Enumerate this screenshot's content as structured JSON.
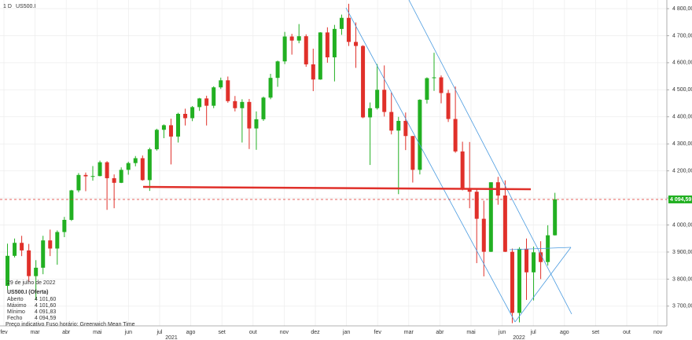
{
  "header": {
    "interval": "1 D",
    "symbol": "US500.I"
  },
  "chart_data": {
    "type": "candlestick",
    "up_color": "#22b022",
    "down_color": "#e0302a",
    "months": [
      "fev",
      "mar",
      "abr",
      "mai",
      "jun",
      "jul",
      "ago",
      "set",
      "out",
      "nov",
      "dez",
      "jan",
      "fev",
      "mar",
      "abr",
      "mai",
      "jun",
      "jul",
      "ago",
      "set",
      "out",
      "nov"
    ],
    "years": [
      "2021",
      "2022"
    ],
    "ylim": [
      3627,
      4832
    ],
    "yticks": [
      {
        "value": 3700,
        "label": "3 700,00"
      },
      {
        "value": 3800,
        "label": "3 800,00"
      },
      {
        "value": 3900,
        "label": "3 900,00"
      },
      {
        "value": 4000,
        "label": "4 000,00"
      },
      {
        "value": 4100,
        "label": "4 100,00"
      },
      {
        "value": 4200,
        "label": "4 200,00"
      },
      {
        "value": 4300,
        "label": "4 300,00"
      },
      {
        "value": 4400,
        "label": "4 400,00"
      },
      {
        "value": 4500,
        "label": "4 500,00"
      },
      {
        "value": 4600,
        "label": "4 600,00"
      },
      {
        "value": 4700,
        "label": "4 700,00"
      },
      {
        "value": 4800,
        "label": "4 800,00"
      }
    ],
    "grid": true,
    "last_price": {
      "value": 4094.59,
      "label": "4 094,59"
    },
    "open": [
      3775,
      3886,
      3934,
      3906,
      3811,
      3842,
      3943,
      3913,
      3974,
      4019,
      4128,
      4185,
      4180,
      4181,
      4232,
      4173,
      4156,
      4204,
      4229,
      4247,
      4166,
      4280,
      4352,
      4369,
      4327,
      4411,
      4395,
      4436,
      4468,
      4441,
      4509,
      4535,
      4458,
      4432,
      4455,
      4357,
      4391,
      4471,
      4544,
      4605,
      4697,
      4682,
      4698,
      4594,
      4538,
      4712,
      4620,
      4725,
      4766,
      4677,
      4662,
      4398,
      4432,
      4500,
      4418,
      4349,
      4385,
      4329,
      4204,
      4463,
      4543,
      4546,
      4488,
      4392,
      4272,
      4132,
      4123,
      4023,
      3901,
      4158,
      4109,
      3901,
      3675,
      3912,
      3825,
      3899,
      3863,
      3962
    ],
    "high": [
      3931,
      3950,
      3960,
      3930,
      3870,
      3960,
      3983,
      3980,
      4030,
      4130,
      4192,
      4194,
      4218,
      4238,
      4236,
      4187,
      4213,
      4234,
      4255,
      4257,
      4286,
      4356,
      4372,
      4393,
      4415,
      4430,
      4440,
      4470,
      4478,
      4513,
      4545,
      4549,
      4477,
      4465,
      4466,
      4420,
      4475,
      4559,
      4608,
      4714,
      4707,
      4743,
      4705,
      4652,
      4713,
      4731,
      4740,
      4778,
      4818,
      4749,
      4665,
      4453,
      4595,
      4590,
      4490,
      4400,
      4416,
      4329,
      4465,
      4546,
      4637,
      4553,
      4500,
      4512,
      4308,
      4307,
      4132,
      4090,
      4158,
      4178,
      4165,
      3913,
      3918,
      3950,
      3920,
      3940,
      3999,
      4119
    ],
    "low": [
      3760,
      3880,
      3885,
      3790,
      3723,
      3818,
      3885,
      3853,
      3955,
      4015,
      4121,
      4125,
      4164,
      4180,
      4056,
      4062,
      4155,
      4186,
      4217,
      4164,
      4126,
      4275,
      4321,
      4224,
      4305,
      4368,
      4384,
      4422,
      4368,
      4432,
      4503,
      4452,
      4420,
      4305,
      4281,
      4278,
      4385,
      4465,
      4511,
      4595,
      4630,
      4672,
      4585,
      4495,
      4537,
      4600,
      4531,
      4703,
      4662,
      4581,
      4395,
      4222,
      4427,
      4401,
      4335,
      4114,
      4277,
      4157,
      4187,
      4449,
      4496,
      4450,
      4381,
      4267,
      4128,
      4062,
      3859,
      3810,
      3900,
      4075,
      3900,
      3637,
      3640,
      3723,
      3721,
      3800,
      3850,
      3961
    ],
    "close": [
      3886,
      3934,
      3906,
      3811,
      3842,
      3943,
      3913,
      3974,
      4019,
      4128,
      4185,
      4180,
      4181,
      4232,
      4173,
      4156,
      4204,
      4229,
      4247,
      4166,
      4280,
      4352,
      4369,
      4327,
      4411,
      4395,
      4436,
      4468,
      4441,
      4509,
      4535,
      4458,
      4432,
      4455,
      4357,
      4391,
      4471,
      4544,
      4605,
      4697,
      4682,
      4698,
      4594,
      4538,
      4712,
      4620,
      4725,
      4766,
      4677,
      4662,
      4398,
      4432,
      4500,
      4418,
      4349,
      4385,
      4329,
      4204,
      4463,
      4543,
      4546,
      4488,
      4392,
      4272,
      4132,
      4123,
      4023,
      3901,
      4158,
      4109,
      3901,
      3675,
      3912,
      3825,
      3899,
      3863,
      3962,
      4095
    ]
  },
  "info": {
    "date": "29 de julho de 2022",
    "symbol": "US500.I (Oferta)",
    "rows": [
      [
        "Aberto",
        "4 101,60"
      ],
      [
        "Máximo",
        "4 101,60"
      ],
      [
        "Mínimo",
        "4 091,83"
      ],
      [
        "Fecho",
        "4 094,59"
      ]
    ],
    "footer": "Preço indicativo   Fuso horário: Greenwich Mean Time"
  }
}
